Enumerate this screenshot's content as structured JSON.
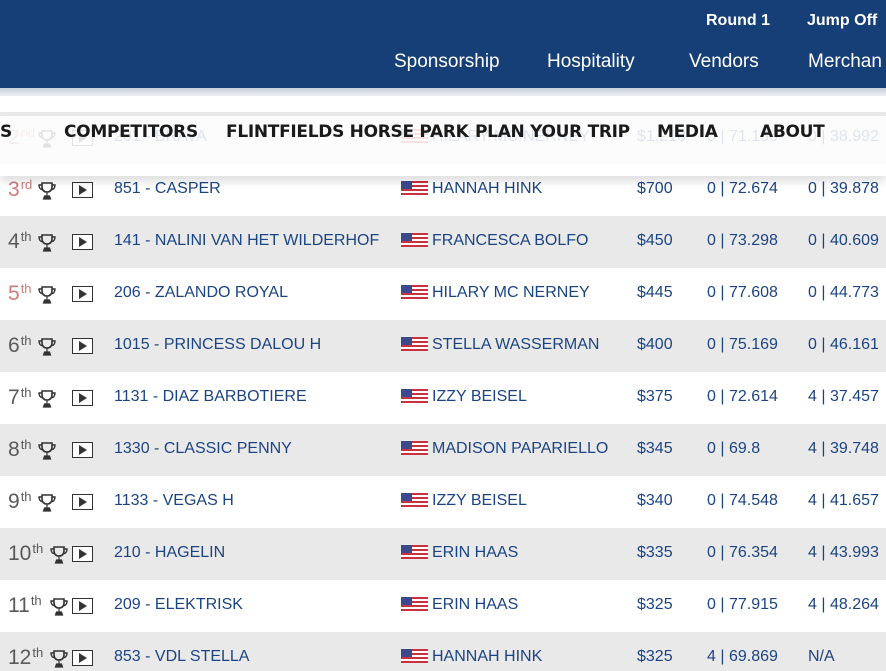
{
  "header": {
    "sub_nav": [
      "Round 1",
      "Jump Off"
    ],
    "main_nav": [
      "Sponsorship",
      "Hospitality",
      "Vendors",
      "Merchan"
    ]
  },
  "site_nav": [
    "S",
    "COMPETITORS",
    "FLINTFIELDS HORSE PARK",
    "PLAN YOUR TRIP",
    "MEDIA",
    "ABOUT"
  ],
  "results": [
    {
      "place": "2",
      "suffix": "nd",
      "highlight": true,
      "horse": "201 - BRAVA",
      "rider": "HILARY MC NERNEY",
      "prize": "$1,210",
      "round1": "0 | 71.136",
      "jumpoff": "0 | 38.992"
    },
    {
      "place": "3",
      "suffix": "rd",
      "highlight": true,
      "horse": "851 - CASPER",
      "rider": "HANNAH HINK",
      "prize": "$700",
      "round1": "0 | 72.674",
      "jumpoff": "0 | 39.878"
    },
    {
      "place": "4",
      "suffix": "th",
      "highlight": false,
      "horse": "141 - NALINI VAN HET WILDERHOF",
      "rider": "FRANCESCA BOLFO",
      "prize": "$450",
      "round1": "0 | 73.298",
      "jumpoff": "0 | 40.609"
    },
    {
      "place": "5",
      "suffix": "th",
      "highlight": true,
      "horse": "206 - ZALANDO ROYAL",
      "rider": "HILARY MC NERNEY",
      "prize": "$445",
      "round1": "0 | 77.608",
      "jumpoff": "0 | 44.773"
    },
    {
      "place": "6",
      "suffix": "th",
      "highlight": false,
      "horse": "1015 - PRINCESS DALOU H",
      "rider": "STELLA WASSERMAN",
      "prize": "$400",
      "round1": "0 | 75.169",
      "jumpoff": "0 | 46.161"
    },
    {
      "place": "7",
      "suffix": "th",
      "highlight": false,
      "horse": "1131 - DIAZ BARBOTIERE",
      "rider": "IZZY BEISEL",
      "prize": "$375",
      "round1": "0 | 72.614",
      "jumpoff": "4 | 37.457"
    },
    {
      "place": "8",
      "suffix": "th",
      "highlight": false,
      "horse": "1330 - CLASSIC PENNY",
      "rider": "MADISON PAPARIELLO",
      "prize": "$345",
      "round1": "0 | 69.8",
      "jumpoff": "4 | 39.748"
    },
    {
      "place": "9",
      "suffix": "th",
      "highlight": false,
      "horse": "1133 - VEGAS H",
      "rider": "IZZY BEISEL",
      "prize": "$340",
      "round1": "0 | 74.548",
      "jumpoff": "4 | 41.657"
    },
    {
      "place": "10",
      "suffix": "th",
      "highlight": false,
      "horse": "210 - HAGELIN",
      "rider": "ERIN HAAS",
      "prize": "$335",
      "round1": "0 | 76.354",
      "jumpoff": "4 | 43.993"
    },
    {
      "place": "11",
      "suffix": "th",
      "highlight": false,
      "horse": "209 - ELEKTRISK",
      "rider": "ERIN HAAS",
      "prize": "$325",
      "round1": "0 | 77.915",
      "jumpoff": "4 | 48.264"
    },
    {
      "place": "12",
      "suffix": "th",
      "highlight": false,
      "horse": "853 - VDL STELLA",
      "rider": "HANNAH HINK",
      "prize": "$325",
      "round1": "4 | 69.869",
      "jumpoff": "N/A"
    }
  ],
  "icons": {
    "trophy": "trophy-icon",
    "video": "video-play-icon",
    "flag": "us-flag-icon"
  },
  "colors": {
    "header_bg": "#163f77",
    "link_blue": "#1b4483",
    "row_gray": "#e9e9e9",
    "place_highlight": "#d07b7b"
  }
}
